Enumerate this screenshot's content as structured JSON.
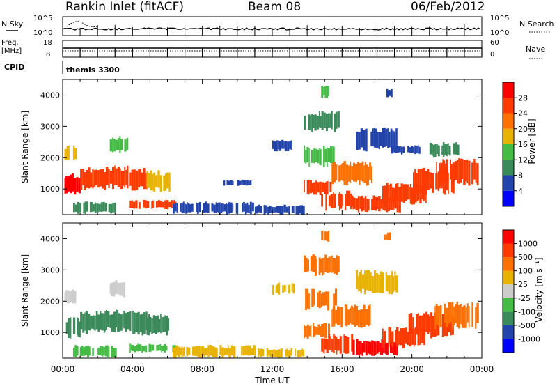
{
  "header": {
    "station": "Rankin Inlet (fitACF)",
    "beam": "Beam 08",
    "date": "06/Feb/2012"
  },
  "labels": {
    "nsky": "N.Sky",
    "nsearch": "N.Search",
    "freq": "Freq.",
    "freq_unit": "[MHz]",
    "nave": "Nave",
    "cpid": "CPID",
    "cpid_value": "themis 3300",
    "pow_exp_hi": "10^5",
    "pow_exp_lo": "10^0",
    "freq_hi": "18",
    "freq_lo": "8",
    "nave_hi": "60",
    "nave_lo": "0",
    "ylabel": "Slant Range [km]",
    "xlabel": "Time UT"
  },
  "chart_data": [
    {
      "type": "heatmap",
      "name": "power",
      "title": "",
      "xlabel": "",
      "ylabel": "Slant Range [km]",
      "x_ticks": [
        "00:00",
        "04:00",
        "08:00",
        "12:00",
        "16:00",
        "20:00",
        "00:00"
      ],
      "xlim": [
        0,
        24
      ],
      "y_ticks": [
        1000,
        2000,
        3000,
        4000
      ],
      "ylim": [
        180,
        4500
      ],
      "colorbar": {
        "label": "Power [dB]",
        "ticks": [
          "4",
          "8",
          "12",
          "16",
          "20",
          "24",
          "28"
        ],
        "colors": [
          "#0000ff",
          "#2244aa",
          "#3a8a5a",
          "#44bb44",
          "#e8b200",
          "#ff7000",
          "#ff3a00",
          "#ff0000"
        ]
      },
      "regions": [
        {
          "t": [
            0.1,
            1.0
          ],
          "r": [
            800,
            1500
          ],
          "level": 7
        },
        {
          "t": [
            1.0,
            2.4
          ],
          "r": [
            950,
            1700
          ],
          "level": 6
        },
        {
          "t": [
            2.4,
            3.8
          ],
          "r": [
            1000,
            1750
          ],
          "level": 6
        },
        {
          "t": [
            3.8,
            4.8
          ],
          "r": [
            900,
            1700
          ],
          "level": 6
        },
        {
          "t": [
            4.8,
            6.1
          ],
          "r": [
            900,
            1600
          ],
          "level": 4
        },
        {
          "t": [
            0.1,
            0.7
          ],
          "r": [
            1900,
            2400
          ],
          "level": 4
        },
        {
          "t": [
            2.7,
            3.7
          ],
          "r": [
            2100,
            2700
          ],
          "level": 3
        },
        {
          "t": [
            3.8,
            6.5
          ],
          "r": [
            350,
            650
          ],
          "level": 6
        },
        {
          "t": [
            0.6,
            3.0
          ],
          "r": [
            200,
            600
          ],
          "level": 2
        },
        {
          "t": [
            6.3,
            11.0
          ],
          "r": [
            180,
            600
          ],
          "level": 1
        },
        {
          "t": [
            11.0,
            13.8
          ],
          "r": [
            180,
            500
          ],
          "level": 1
        },
        {
          "t": [
            13.8,
            15.3
          ],
          "r": [
            800,
            1300
          ],
          "level": 6
        },
        {
          "t": [
            14.8,
            16.6
          ],
          "r": [
            300,
            950
          ],
          "level": 6
        },
        {
          "t": [
            15.4,
            17.7
          ],
          "r": [
            1100,
            1900
          ],
          "level": 5
        },
        {
          "t": [
            13.8,
            15.6
          ],
          "r": [
            1700,
            2400
          ],
          "level": 3
        },
        {
          "t": [
            16.6,
            19.3
          ],
          "r": [
            250,
            800
          ],
          "level": 6
        },
        {
          "t": [
            18.3,
            20.8
          ],
          "r": [
            500,
            1200
          ],
          "level": 6
        },
        {
          "t": [
            19.8,
            22.4
          ],
          "r": [
            800,
            1700
          ],
          "level": 6
        },
        {
          "t": [
            21.3,
            23.8
          ],
          "r": [
            1100,
            2000
          ],
          "level": 6
        },
        {
          "t": [
            16.8,
            19.1
          ],
          "r": [
            2200,
            3000
          ],
          "level": 1
        },
        {
          "t": [
            13.8,
            15.8
          ],
          "r": [
            2800,
            3500
          ],
          "level": 2
        },
        {
          "t": [
            12.0,
            13.2
          ],
          "r": [
            2200,
            2600
          ],
          "level": 1
        },
        {
          "t": [
            9.2,
            10.8
          ],
          "r": [
            1100,
            1300
          ],
          "level": 1
        },
        {
          "t": [
            18.7,
            20.5
          ],
          "r": [
            2100,
            2400
          ],
          "level": 1
        },
        {
          "t": [
            21.0,
            22.6
          ],
          "r": [
            2000,
            2500
          ],
          "level": 2
        },
        {
          "t": [
            14.8,
            15.2
          ],
          "r": [
            3900,
            4300
          ],
          "level": 3
        },
        {
          "t": [
            18.4,
            18.8
          ],
          "r": [
            3900,
            4200
          ],
          "level": 1
        }
      ]
    },
    {
      "type": "heatmap",
      "name": "velocity",
      "title": "",
      "xlabel": "Time UT",
      "ylabel": "Slant Range [km]",
      "x_ticks": [
        "00:00",
        "04:00",
        "08:00",
        "12:00",
        "16:00",
        "20:00",
        "00:00"
      ],
      "xlim": [
        0,
        24
      ],
      "y_ticks": [
        1000,
        2000,
        3000,
        4000
      ],
      "ylim": [
        180,
        4500
      ],
      "colorbar": {
        "label": "Velocity [m s⁻¹]",
        "ticks": [
          "1000",
          "500",
          "100",
          "25",
          "-25",
          "-100",
          "-500",
          "-1000"
        ],
        "colors": [
          "#0000ff",
          "#2244aa",
          "#3a8a5a",
          "#44bb44",
          "#cccccc",
          "#e8b200",
          "#ff7000",
          "#ff3a00",
          "#ff0000"
        ]
      },
      "regions": [
        {
          "t": [
            0.1,
            1.0
          ],
          "r": [
            800,
            1500
          ],
          "level": 2
        },
        {
          "t": [
            1.0,
            2.4
          ],
          "r": [
            950,
            1700
          ],
          "level": 2
        },
        {
          "t": [
            2.4,
            3.8
          ],
          "r": [
            1000,
            1750
          ],
          "level": 2
        },
        {
          "t": [
            3.8,
            4.8
          ],
          "r": [
            900,
            1700
          ],
          "level": 2
        },
        {
          "t": [
            4.8,
            6.1
          ],
          "r": [
            900,
            1600
          ],
          "level": 2
        },
        {
          "t": [
            0.1,
            0.7
          ],
          "r": [
            1900,
            2400
          ],
          "level": 4
        },
        {
          "t": [
            2.7,
            3.7
          ],
          "r": [
            2100,
            2700
          ],
          "level": 4
        },
        {
          "t": [
            3.8,
            6.5
          ],
          "r": [
            350,
            650
          ],
          "level": 3
        },
        {
          "t": [
            0.6,
            3.0
          ],
          "r": [
            200,
            600
          ],
          "level": 3
        },
        {
          "t": [
            6.3,
            11.0
          ],
          "r": [
            180,
            600
          ],
          "level": 5
        },
        {
          "t": [
            11.0,
            13.8
          ],
          "r": [
            180,
            500
          ],
          "level": 5
        },
        {
          "t": [
            13.8,
            15.3
          ],
          "r": [
            800,
            1300
          ],
          "level": 6
        },
        {
          "t": [
            14.8,
            16.6
          ],
          "r": [
            300,
            950
          ],
          "level": 7
        },
        {
          "t": [
            15.4,
            17.7
          ],
          "r": [
            1100,
            1900
          ],
          "level": 6
        },
        {
          "t": [
            13.8,
            15.6
          ],
          "r": [
            1700,
            2400
          ],
          "level": 6
        },
        {
          "t": [
            16.6,
            19.3
          ],
          "r": [
            250,
            800
          ],
          "level": 8
        },
        {
          "t": [
            18.3,
            20.8
          ],
          "r": [
            500,
            1200
          ],
          "level": 7
        },
        {
          "t": [
            19.8,
            22.4
          ],
          "r": [
            800,
            1700
          ],
          "level": 7
        },
        {
          "t": [
            21.3,
            23.8
          ],
          "r": [
            1100,
            2000
          ],
          "level": 6
        },
        {
          "t": [
            16.8,
            19.1
          ],
          "r": [
            2200,
            3000
          ],
          "level": 5
        },
        {
          "t": [
            13.8,
            15.8
          ],
          "r": [
            2800,
            3500
          ],
          "level": 6
        },
        {
          "t": [
            12.0,
            13.2
          ],
          "r": [
            2200,
            2600
          ],
          "level": 5
        },
        {
          "t": [
            14.8,
            15.2
          ],
          "r": [
            3900,
            4300
          ],
          "level": 6
        },
        {
          "t": [
            18.4,
            18.8
          ],
          "r": [
            3900,
            4200
          ],
          "level": 6
        }
      ]
    }
  ]
}
